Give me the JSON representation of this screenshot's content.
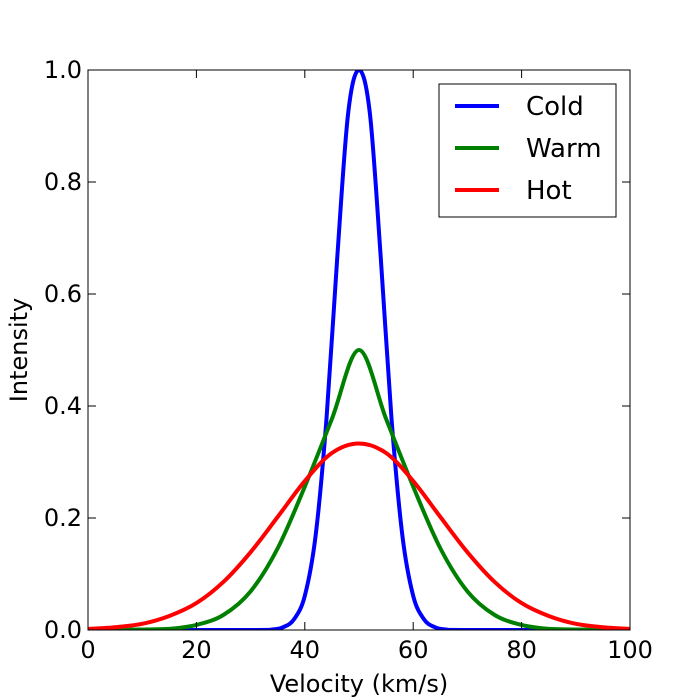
{
  "chart_data": {
    "type": "line",
    "title": "",
    "xlabel": "Velocity (km/s)",
    "ylabel": "Intensity",
    "xlim": [
      0,
      100
    ],
    "ylim": [
      0,
      1.0
    ],
    "x_ticks": [
      0,
      20,
      40,
      60,
      80,
      100
    ],
    "x_tick_labels": [
      "0",
      "20",
      "40",
      "60",
      "80",
      "100"
    ],
    "y_ticks": [
      0,
      0.2,
      0.4,
      0.6,
      0.8,
      1.0
    ],
    "y_tick_labels": [
      "0.0",
      "0.2",
      "0.4",
      "0.6",
      "0.8",
      "1.0"
    ],
    "grid": false,
    "legend_position": "top-right",
    "series": [
      {
        "name": "Cold",
        "color": "#0000ff",
        "x": [
          0,
          30,
          34,
          36,
          38,
          40,
          42,
          44,
          46,
          48,
          50,
          52,
          54,
          56,
          58,
          60,
          62,
          64,
          66,
          70,
          100
        ],
        "y": [
          0,
          0,
          0.001,
          0.005,
          0.019,
          0.061,
          0.169,
          0.377,
          0.667,
          0.923,
          1.0,
          0.923,
          0.667,
          0.377,
          0.169,
          0.061,
          0.019,
          0.005,
          0.001,
          0,
          0
        ]
      },
      {
        "name": "Warm",
        "color": "#008000",
        "x": [
          0,
          10,
          15,
          20,
          25,
          30,
          35,
          40,
          45,
          50,
          55,
          60,
          65,
          70,
          75,
          80,
          85,
          90,
          100
        ],
        "y": [
          0,
          0.001,
          0.002,
          0.009,
          0.027,
          0.069,
          0.146,
          0.256,
          0.377,
          0.5,
          0.377,
          0.256,
          0.146,
          0.069,
          0.027,
          0.009,
          0.002,
          0.001,
          0
        ]
      },
      {
        "name": "Hot",
        "color": "#ff0000",
        "x": [
          0,
          5,
          10,
          15,
          20,
          25,
          30,
          35,
          40,
          45,
          50,
          55,
          60,
          65,
          70,
          75,
          80,
          85,
          90,
          95,
          100
        ],
        "y": [
          0.002,
          0.005,
          0.011,
          0.025,
          0.048,
          0.086,
          0.139,
          0.202,
          0.266,
          0.316,
          0.333,
          0.316,
          0.266,
          0.202,
          0.139,
          0.086,
          0.048,
          0.025,
          0.011,
          0.005,
          0.002
        ]
      }
    ]
  }
}
